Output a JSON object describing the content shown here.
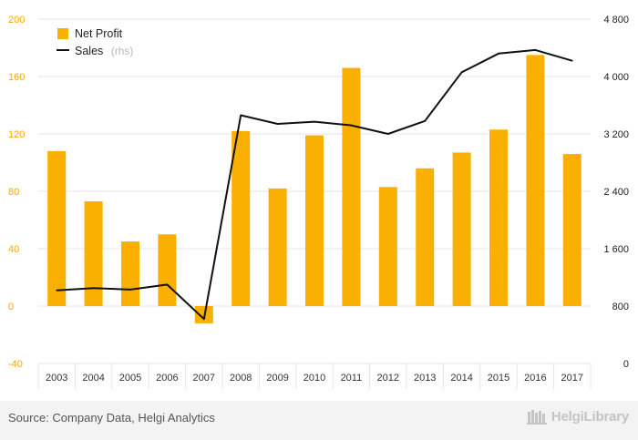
{
  "chart_data": {
    "type": "bar+line",
    "categories": [
      "2003",
      "2004",
      "2005",
      "2006",
      "2007",
      "2008",
      "2009",
      "2010",
      "2011",
      "2012",
      "2013",
      "2014",
      "2015",
      "2016",
      "2017"
    ],
    "series": [
      {
        "name": "Net Profit",
        "axis": "left",
        "type": "bar",
        "color": "#f9b000",
        "values": [
          108,
          73,
          45,
          50,
          -12,
          122,
          82,
          119,
          166,
          83,
          96,
          107,
          123,
          175,
          106
        ]
      },
      {
        "name": "Sales",
        "name_suffix": "(rhs)",
        "axis": "right",
        "type": "line",
        "color": "#111111",
        "values": [
          1020,
          1050,
          1030,
          1100,
          620,
          3460,
          3340,
          3370,
          3320,
          3200,
          3380,
          4060,
          4320,
          4370,
          4220
        ]
      }
    ],
    "y_left": {
      "min": -40,
      "max": 200,
      "ticks": [
        "-40",
        "0",
        "40",
        "80",
        "120",
        "160",
        "200"
      ]
    },
    "y_right": {
      "min": 0,
      "max": 4800,
      "ticks": [
        "0",
        "800",
        "1 600",
        "2 400",
        "3 200",
        "4 000",
        "4 800"
      ]
    },
    "grid": "horizontal",
    "legend_position": "top-left"
  },
  "footer": {
    "source": "Source: Company Data, Helgi Analytics",
    "logo": "HelgiLibrary"
  },
  "colors": {
    "bar": "#f9b000",
    "line": "#111111",
    "left_axis": "#f5a800",
    "grid": "#e6e6e6"
  }
}
